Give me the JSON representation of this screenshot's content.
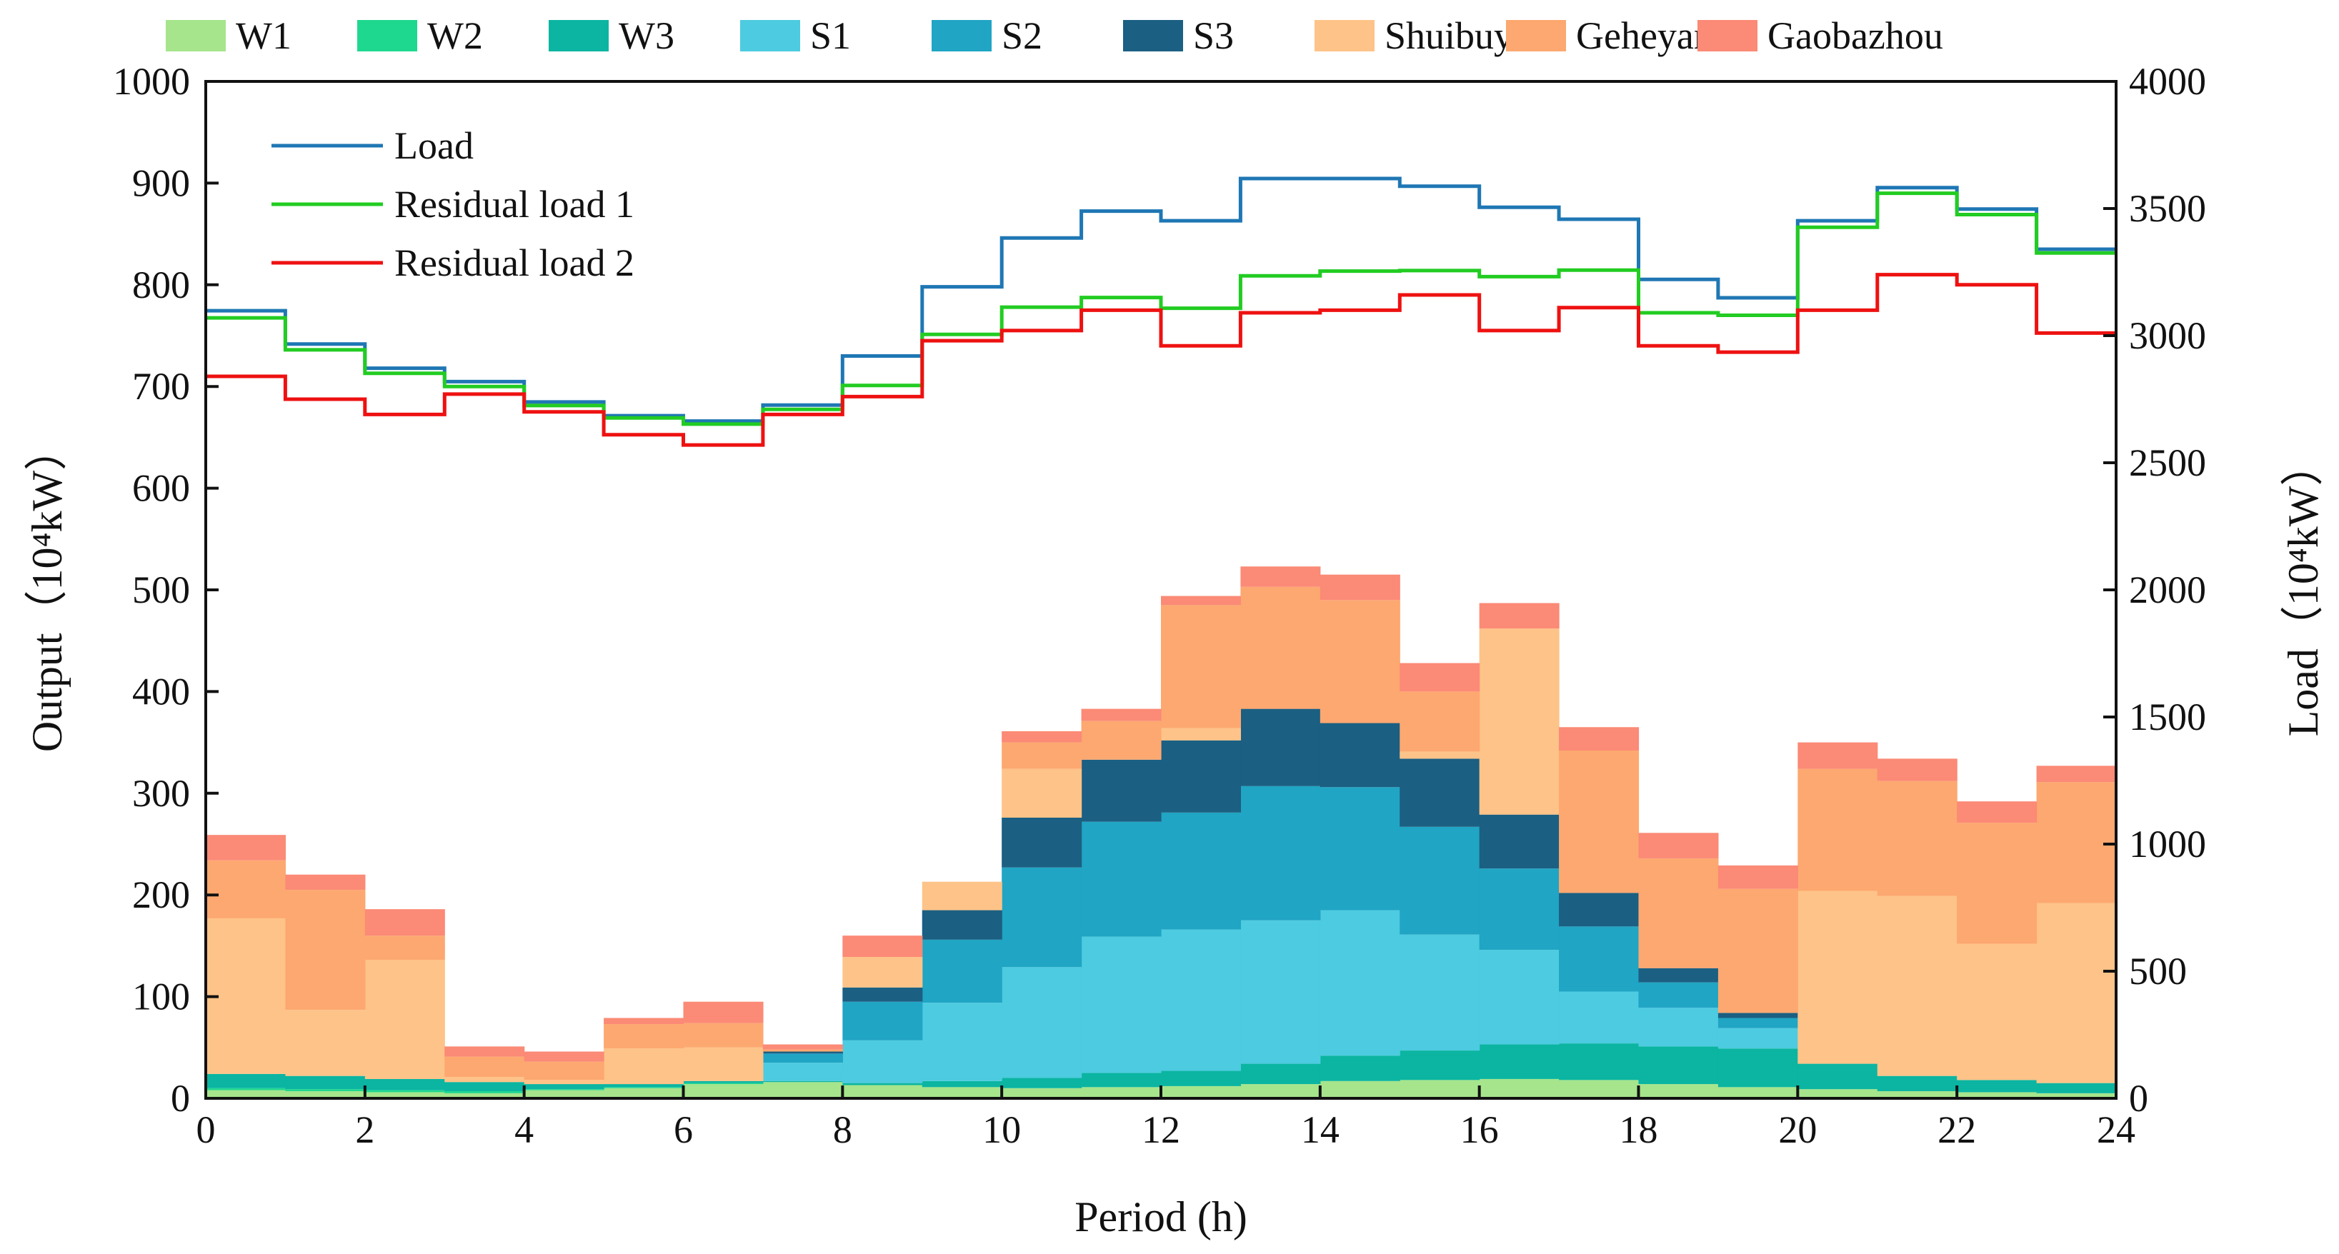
{
  "chart_data": {
    "type": "area",
    "xlabel": "Period (h)",
    "ylabel_left": "Output（10⁴kW）",
    "ylabel_right": "Load（10⁴kW）",
    "xlim": [
      0,
      24
    ],
    "ylim_left": [
      0,
      1000
    ],
    "ylim_right": [
      0,
      4000
    ],
    "x_ticks": [
      "0",
      "2",
      "4",
      "6",
      "8",
      "10",
      "12",
      "14",
      "16",
      "18",
      "20",
      "22",
      "24"
    ],
    "y_ticks_left": [
      "0",
      "100",
      "200",
      "300",
      "400",
      "500",
      "600",
      "700",
      "800",
      "900",
      "1000"
    ],
    "y_ticks_right": [
      "0",
      "500",
      "1000",
      "1500",
      "2000",
      "2500",
      "3000",
      "3500",
      "4000"
    ],
    "periods": [
      0,
      1,
      2,
      3,
      4,
      5,
      6,
      7,
      8,
      9,
      10,
      11,
      12,
      13,
      14,
      15,
      16,
      17,
      18,
      19,
      20,
      21,
      22,
      23
    ],
    "stack_series": [
      {
        "name": "W1",
        "color": "#a6e58c",
        "values": [
          8,
          7,
          6,
          5,
          8,
          10,
          14,
          16,
          13,
          11,
          10,
          11,
          12,
          14,
          17,
          18,
          19,
          18,
          14,
          11,
          9,
          7,
          6,
          5
        ]
      },
      {
        "name": "W2",
        "color": "#1fd88f",
        "values": [
          2,
          2,
          2,
          2,
          1,
          1,
          1,
          0,
          0,
          0,
          0,
          0,
          0,
          0,
          0,
          0,
          0,
          0,
          0,
          0,
          0,
          0,
          0,
          0
        ]
      },
      {
        "name": "W3",
        "color": "#0bb5a1",
        "values": [
          14,
          13,
          11,
          9,
          5,
          3,
          2,
          1,
          2,
          6,
          10,
          14,
          15,
          20,
          25,
          29,
          34,
          36,
          37,
          38,
          25,
          15,
          12,
          10
        ]
      },
      {
        "name": "S1",
        "color": "#4dcbe0",
        "values": [
          0,
          0,
          0,
          0,
          0,
          0,
          0,
          18,
          42,
          77,
          109,
          134,
          139,
          141,
          143,
          114,
          93,
          51,
          38,
          20,
          0,
          0,
          0,
          0
        ]
      },
      {
        "name": "S2",
        "color": "#20a5c4",
        "values": [
          0,
          0,
          0,
          0,
          0,
          0,
          0,
          9,
          38,
          62,
          98,
          113,
          115,
          132,
          121,
          106,
          80,
          64,
          25,
          10,
          0,
          0,
          0,
          0
        ]
      },
      {
        "name": "S3",
        "color": "#1b5f82",
        "values": [
          0,
          0,
          0,
          0,
          0,
          0,
          0,
          2,
          14,
          29,
          49,
          61,
          71,
          76,
          63,
          67,
          53,
          33,
          14,
          5,
          0,
          0,
          0,
          0
        ]
      },
      {
        "name": "Shuibuya",
        "color": "#fec388",
        "values": [
          153,
          65,
          117,
          5,
          4,
          35,
          33,
          0,
          30,
          28,
          48,
          0,
          12,
          0,
          0,
          7,
          183,
          0,
          0,
          0,
          170,
          177,
          134,
          177
        ]
      },
      {
        "name": "Geheyan",
        "color": "#fda870",
        "values": [
          57,
          118,
          24,
          20,
          18,
          24,
          24,
          2,
          0,
          0,
          26,
          38,
          121,
          120,
          121,
          59,
          0,
          140,
          108,
          122,
          120,
          113,
          119,
          119
        ]
      },
      {
        "name": "Gaobazhou",
        "color": "#fb8a76",
        "values": [
          25,
          15,
          26,
          10,
          10,
          6,
          21,
          5,
          21,
          0,
          11,
          12,
          9,
          20,
          25,
          28,
          25,
          23,
          25,
          23,
          26,
          22,
          21,
          16
        ]
      }
    ],
    "line_series": [
      {
        "name": "Load",
        "color": "#1f77b4",
        "values": [
          3098,
          2967,
          2872,
          2819,
          2739,
          2685,
          2664,
          2727,
          2920,
          3192,
          3384,
          3490,
          3452,
          3618,
          3618,
          3588,
          3505,
          3458,
          3221,
          3149,
          3452,
          3582,
          3498,
          3340
        ]
      },
      {
        "name": "Residual load 1",
        "color": "#22cc22",
        "values": [
          3070,
          2944,
          2852,
          2800,
          2725,
          2676,
          2652,
          2710,
          2804,
          3005,
          3112,
          3150,
          3108,
          3235,
          3254,
          3256,
          3232,
          3258,
          3090,
          3080,
          3426,
          3560,
          3476,
          3325
        ]
      },
      {
        "name": "Residual load 2",
        "color": "#ee1111",
        "values": [
          2840,
          2750,
          2690,
          2770,
          2700,
          2610,
          2570,
          2690,
          2760,
          2980,
          3020,
          3100,
          2960,
          3090,
          3100,
          3160,
          3020,
          3110,
          2960,
          2935,
          3100,
          3240,
          3200,
          3010
        ]
      }
    ]
  }
}
